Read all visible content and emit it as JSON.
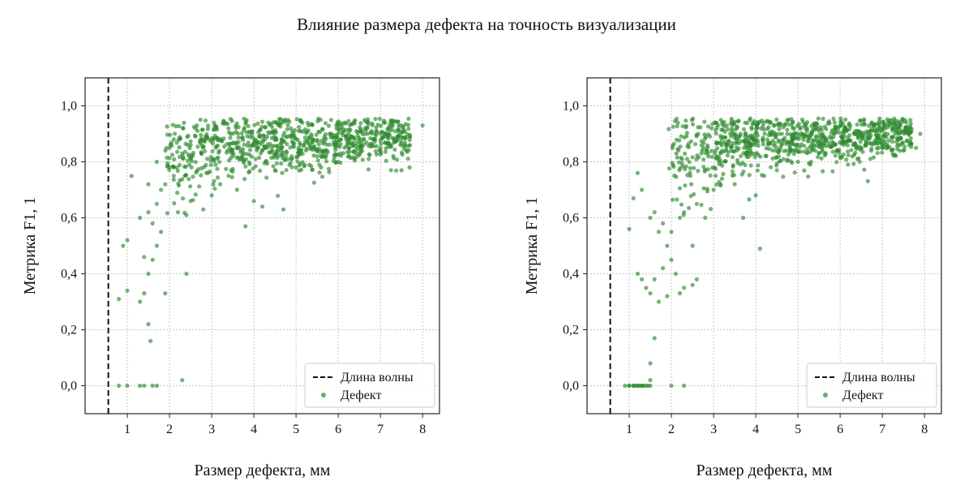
{
  "figure": {
    "title": "Влияние размера дефекта на точность визуализации"
  },
  "colors": {
    "points": "#2e8b2e",
    "grid": "#c8c8c8",
    "wavelength_line": "#111111"
  },
  "chart_data": [
    {
      "type": "scatter",
      "xlabel": "Размер дефекта, мм",
      "ylabel": "Метрика F1, 1",
      "xlim": [
        0.0,
        8.4
      ],
      "ylim": [
        -0.1,
        1.1
      ],
      "xticks": [
        1,
        2,
        3,
        4,
        5,
        6,
        7,
        8
      ],
      "xtick_labels": [
        "1",
        "2",
        "3",
        "4",
        "5",
        "6",
        "7",
        "8"
      ],
      "yticks": [
        0.0,
        0.2,
        0.4,
        0.6,
        0.8,
        1.0
      ],
      "ytick_labels": [
        "0,0",
        "0,2",
        "0,4",
        "0,6",
        "0,8",
        "1,0"
      ],
      "grid": true,
      "legend_position": "bottom-right",
      "wavelength_x": 0.55,
      "series": [
        {
          "name": "Дефект",
          "points": [
            [
              0.8,
              0.0
            ],
            [
              1.0,
              0.0
            ],
            [
              1.3,
              0.0
            ],
            [
              1.4,
              0.0
            ],
            [
              1.6,
              0.0
            ],
            [
              1.7,
              0.0
            ],
            [
              2.3,
              0.02
            ],
            [
              0.8,
              0.31
            ],
            [
              1.0,
              0.34
            ],
            [
              0.9,
              0.5
            ],
            [
              1.0,
              0.52
            ],
            [
              1.1,
              0.75
            ],
            [
              1.3,
              0.3
            ],
            [
              1.4,
              0.33
            ],
            [
              1.5,
              0.22
            ],
            [
              1.55,
              0.16
            ],
            [
              1.4,
              0.46
            ],
            [
              1.5,
              0.4
            ],
            [
              1.6,
              0.45
            ],
            [
              1.7,
              0.5
            ],
            [
              1.8,
              0.55
            ],
            [
              1.9,
              0.33
            ],
            [
              2.4,
              0.4
            ],
            [
              1.3,
              0.6
            ],
            [
              1.5,
              0.62
            ],
            [
              1.6,
              0.58
            ],
            [
              1.7,
              0.65
            ],
            [
              1.8,
              0.7
            ],
            [
              1.9,
              0.72
            ],
            [
              2.0,
              0.78
            ],
            [
              2.1,
              0.75
            ],
            [
              2.2,
              0.62
            ],
            [
              2.4,
              0.61
            ],
            [
              2.5,
              0.66
            ],
            [
              1.5,
              0.72
            ],
            [
              1.7,
              0.8
            ],
            [
              2.0,
              0.85
            ],
            [
              2.1,
              0.88
            ],
            [
              2.3,
              0.83
            ],
            [
              2.5,
              0.86
            ],
            [
              2.8,
              0.63
            ],
            [
              3.0,
              0.68
            ],
            [
              3.2,
              0.72
            ],
            [
              3.4,
              0.75
            ],
            [
              3.6,
              0.7
            ],
            [
              3.8,
              0.57
            ],
            [
              4.0,
              0.66
            ],
            [
              4.2,
              0.64
            ],
            [
              4.5,
              0.77
            ],
            [
              4.7,
              0.63
            ],
            [
              5.0,
              0.78
            ],
            [
              5.5,
              0.82
            ],
            [
              6.0,
              0.8
            ],
            [
              6.5,
              0.83
            ],
            [
              7.0,
              0.85
            ],
            [
              7.5,
              0.77
            ],
            [
              7.7,
              0.86
            ],
            [
              8.0,
              0.93
            ]
          ],
          "cluster": {
            "x_range": [
              1.9,
              7.7
            ],
            "y_center": 0.87,
            "y_spread": 0.05,
            "count": 850
          }
        }
      ]
    },
    {
      "type": "scatter",
      "xlabel": "Размер дефекта, мм",
      "ylabel": "Метрика F1, 1",
      "xlim": [
        0.0,
        8.4
      ],
      "ylim": [
        -0.1,
        1.1
      ],
      "xticks": [
        1,
        2,
        3,
        4,
        5,
        6,
        7,
        8
      ],
      "xtick_labels": [
        "1",
        "2",
        "3",
        "4",
        "5",
        "6",
        "7",
        "8"
      ],
      "yticks": [
        0.0,
        0.2,
        0.4,
        0.6,
        0.8,
        1.0
      ],
      "ytick_labels": [
        "0,0",
        "0,2",
        "0,4",
        "0,6",
        "0,8",
        "1,0"
      ],
      "grid": true,
      "legend_position": "bottom-right",
      "wavelength_x": 0.55,
      "series": [
        {
          "name": "Дефект",
          "points": [
            [
              0.9,
              0.0
            ],
            [
              1.0,
              0.0
            ],
            [
              1.1,
              0.0
            ],
            [
              1.15,
              0.0
            ],
            [
              1.2,
              0.0
            ],
            [
              1.25,
              0.0
            ],
            [
              1.3,
              0.0
            ],
            [
              1.35,
              0.0
            ],
            [
              1.4,
              0.0
            ],
            [
              1.45,
              0.0
            ],
            [
              1.5,
              0.0
            ],
            [
              1.0,
              0.0
            ],
            [
              1.1,
              0.0
            ],
            [
              1.2,
              0.0
            ],
            [
              1.3,
              0.0
            ],
            [
              2.0,
              0.0
            ],
            [
              2.3,
              0.0
            ],
            [
              1.5,
              0.08
            ],
            [
              1.6,
              0.17
            ],
            [
              1.5,
              0.02
            ],
            [
              1.0,
              0.56
            ],
            [
              1.1,
              0.67
            ],
            [
              1.2,
              0.4
            ],
            [
              1.3,
              0.38
            ],
            [
              1.4,
              0.35
            ],
            [
              1.5,
              0.33
            ],
            [
              1.6,
              0.38
            ],
            [
              1.7,
              0.3
            ],
            [
              1.8,
              0.42
            ],
            [
              1.9,
              0.32
            ],
            [
              2.0,
              0.45
            ],
            [
              2.1,
              0.4
            ],
            [
              2.2,
              0.33
            ],
            [
              2.3,
              0.35
            ],
            [
              2.5,
              0.36
            ],
            [
              2.6,
              0.38
            ],
            [
              1.2,
              0.76
            ],
            [
              1.3,
              0.7
            ],
            [
              1.5,
              0.6
            ],
            [
              1.6,
              0.62
            ],
            [
              1.7,
              0.55
            ],
            [
              1.8,
              0.58
            ],
            [
              1.9,
              0.5
            ],
            [
              2.0,
              0.55
            ],
            [
              2.2,
              0.6
            ],
            [
              2.3,
              0.62
            ],
            [
              2.5,
              0.5
            ],
            [
              2.6,
              0.65
            ],
            [
              2.8,
              0.6
            ],
            [
              3.0,
              0.7
            ],
            [
              3.2,
              0.74
            ],
            [
              3.5,
              0.72
            ],
            [
              3.7,
              0.6
            ],
            [
              4.0,
              0.68
            ],
            [
              4.1,
              0.49
            ],
            [
              4.2,
              0.75
            ],
            [
              4.5,
              0.77
            ],
            [
              5.0,
              0.8
            ],
            [
              5.5,
              0.83
            ],
            [
              6.0,
              0.82
            ],
            [
              6.5,
              0.85
            ],
            [
              7.0,
              0.86
            ],
            [
              7.5,
              0.84
            ],
            [
              7.8,
              0.85
            ],
            [
              7.9,
              0.9
            ]
          ],
          "cluster": {
            "x_range": [
              1.9,
              7.7
            ],
            "y_center": 0.88,
            "y_spread": 0.045,
            "count": 900
          }
        }
      ]
    }
  ],
  "legend": {
    "wavelength_label": "Длина волны",
    "defect_label": "Дефект"
  }
}
